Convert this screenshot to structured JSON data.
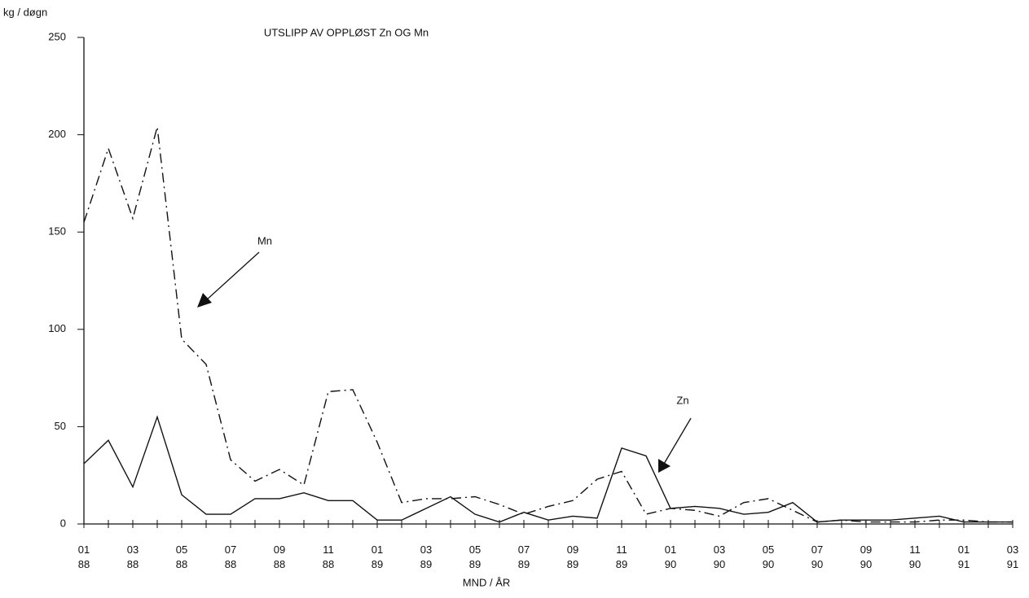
{
  "chart_data": {
    "type": "line",
    "title": "UTSLIPP AV OPPLØST Zn OG Mn",
    "y_label": "kg / døgn",
    "x_label": "MND / ÅR",
    "categories": [
      [
        "01",
        "88"
      ],
      null,
      [
        "03",
        "88"
      ],
      null,
      [
        "05",
        "88"
      ],
      null,
      [
        "07",
        "88"
      ],
      null,
      [
        "09",
        "88"
      ],
      null,
      [
        "11",
        "88"
      ],
      null,
      [
        "01",
        "89"
      ],
      null,
      [
        "03",
        "89"
      ],
      null,
      [
        "05",
        "89"
      ],
      null,
      [
        "07",
        "89"
      ],
      null,
      [
        "09",
        "89"
      ],
      null,
      [
        "11",
        "89"
      ],
      null,
      [
        "01",
        "90"
      ],
      null,
      [
        "03",
        "90"
      ],
      null,
      [
        "05",
        "90"
      ],
      null,
      [
        "07",
        "90"
      ],
      null,
      [
        "09",
        "90"
      ],
      null,
      [
        "11",
        "90"
      ],
      null,
      [
        "01",
        "91"
      ],
      null,
      [
        "03",
        "91"
      ]
    ],
    "series": [
      {
        "name": "Zn",
        "color": "#111111",
        "dash": "solid",
        "values": [
          31,
          43,
          19,
          55,
          15,
          5,
          5,
          13,
          13,
          16,
          12,
          12,
          2,
          2,
          8,
          14,
          5,
          1,
          6,
          2,
          4,
          3,
          39,
          35,
          8,
          9,
          8,
          5,
          6,
          11,
          1,
          2,
          2,
          2,
          3,
          4,
          1,
          1,
          1
        ]
      },
      {
        "name": "Mn",
        "color": "#111111",
        "dash": "dashdot",
        "values": [
          155,
          193,
          157,
          204,
          95,
          82,
          33,
          22,
          28,
          20,
          68,
          69,
          42,
          11,
          13,
          13,
          14,
          10,
          5,
          9,
          12,
          23,
          27,
          5,
          8,
          7,
          4,
          11,
          13,
          7,
          1,
          2,
          1,
          1,
          1,
          2,
          2,
          1,
          1
        ]
      }
    ],
    "ylim": [
      0,
      250
    ],
    "yticks": [
      0,
      50,
      100,
      150,
      200,
      250
    ],
    "grid": false
  }
}
